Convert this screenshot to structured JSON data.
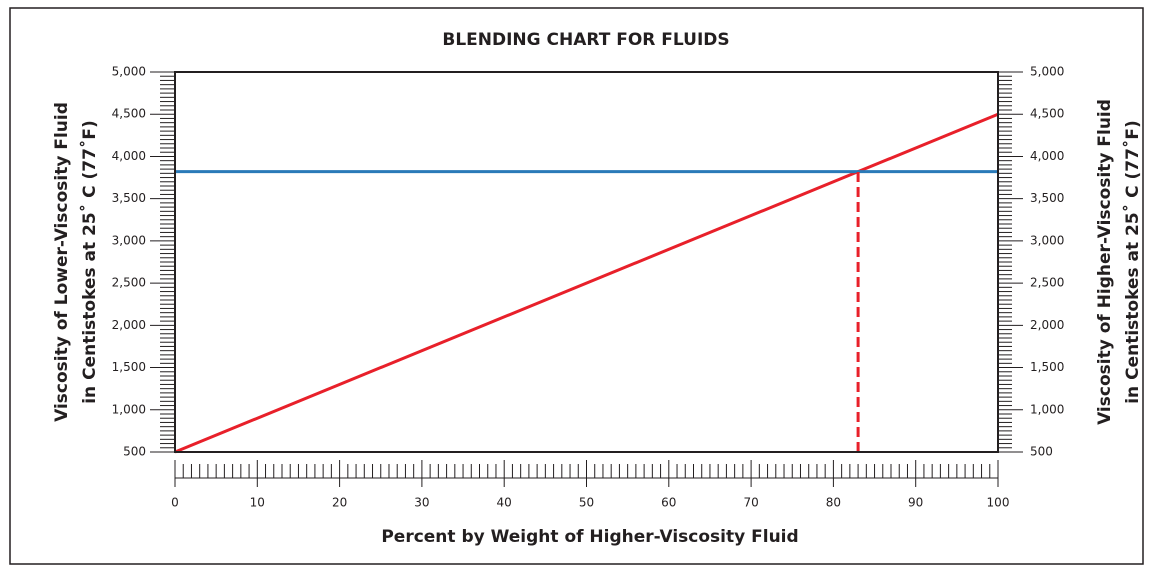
{
  "chart_data": {
    "type": "line",
    "title": "BLENDING CHART FOR FLUIDS",
    "ylabel": [
      "Viscosity of Lower-Viscosity Fluid",
      "in Centistokes at 25˚ C (77˚F)"
    ],
    "y2label": [
      "Viscosity of Higher-Viscosity Fluid",
      "in Centistokes at 25˚ C (77˚F)"
    ],
    "xlabel": "Percent by Weight of Higher-Viscosity Fluid",
    "xlim": [
      0,
      100
    ],
    "xticks": [
      0,
      10,
      20,
      30,
      40,
      50,
      60,
      70,
      80,
      90,
      100
    ],
    "ylim": [
      500,
      5000
    ],
    "yticks": [
      500,
      {
        "value": 1000,
        "label": "1,000"
      },
      {
        "value": 1500,
        "label": "1,500"
      },
      {
        "value": 2000,
        "label": "2,000"
      },
      {
        "value": 2500,
        "label": "2,500"
      },
      {
        "value": 3000,
        "label": "3,000"
      },
      {
        "value": 3500,
        "label": "3,500"
      },
      {
        "value": 4000,
        "label": "4,000"
      },
      {
        "value": 4500,
        "label": "4,500"
      },
      {
        "value": 5000,
        "label": "5,000"
      }
    ],
    "y2lim": [
      500,
      5000
    ],
    "y2ticks": [
      500,
      {
        "value": 1000,
        "label": "1,000"
      },
      {
        "value": 1500,
        "label": "1,500"
      },
      {
        "value": 2000,
        "label": "2,000"
      },
      {
        "value": 2500,
        "label": "2,500"
      },
      {
        "value": 3000,
        "label": "3,000"
      },
      {
        "value": 3500,
        "label": "3,500"
      },
      {
        "value": 4000,
        "label": "4,000"
      },
      {
        "value": 4500,
        "label": "4,500"
      },
      {
        "value": 5000,
        "label": "5,000"
      }
    ],
    "series": [
      {
        "color": "#e8202a",
        "x": [
          0,
          100
        ],
        "values": [
          500,
          4500
        ]
      },
      {
        "color": "#2a7ab8",
        "x": [
          0,
          100
        ],
        "values": [
          3820,
          3820
        ]
      },
      {
        "color": "#e8202a",
        "dashed": true,
        "x": [
          83,
          83
        ],
        "values": [
          500,
          3820
        ]
      }
    ]
  }
}
